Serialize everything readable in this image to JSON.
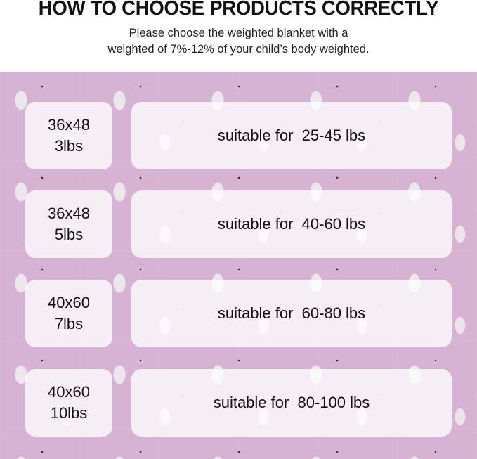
{
  "header": {
    "title": "HOW TO CHOOSE PRODUCTS CORRECTLY",
    "subtitle_line1": "Please choose the weighted blanket with a",
    "subtitle_line2": "weighted of 7%-12% of your child’s body weighted."
  },
  "background_color": "#d7b3d3",
  "rows": [
    {
      "dimensions": "36x48",
      "weight": "3lbs",
      "suitable": "suitable for  25-45 lbs"
    },
    {
      "dimensions": "36x48",
      "weight": "5lbs",
      "suitable": "suitable for  40-60 lbs"
    },
    {
      "dimensions": "40x60",
      "weight": "7lbs",
      "suitable": "suitable for  60-80 lbs"
    },
    {
      "dimensions": "40x60",
      "weight": "10lbs",
      "suitable": "suitable for  80-100 lbs"
    }
  ]
}
